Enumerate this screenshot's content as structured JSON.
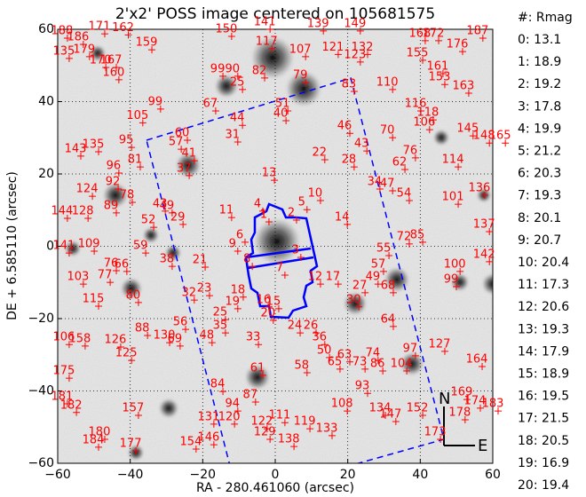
{
  "chart_data": {
    "type": "scatter",
    "title": "2'x2' POSS image centered on 105681575",
    "xlabel": "RA - 280.461060 (arcsec)",
    "ylabel": "DE + 6.585110 (arcsec)",
    "xlim": [
      -60,
      60
    ],
    "ylim": [
      -60,
      60
    ],
    "xticks": [
      {
        "value": -60,
        "label": "−60"
      },
      {
        "value": -40,
        "label": "−40"
      },
      {
        "value": -20,
        "label": "−20"
      },
      0,
      20,
      40,
      60
    ],
    "yticks": [
      {
        "value": -60,
        "label": "−60"
      },
      {
        "value": -40,
        "label": "−40"
      },
      {
        "value": -20,
        "label": "−20"
      },
      0,
      20,
      40,
      60
    ],
    "grid": true,
    "series": [
      {
        "color": "#ff0000",
        "labels": [
          "188",
          "171",
          "162",
          "186",
          "159",
          "150",
          "141",
          "139",
          "149",
          "117",
          "107",
          "121",
          "132",
          "123",
          "168",
          "172",
          "187",
          "176",
          "155",
          "161",
          "153",
          "163",
          "135",
          "179",
          "170",
          "167",
          "160",
          "99",
          "90",
          "25",
          "82",
          "79",
          "83",
          "110",
          "99",
          "67",
          "51",
          "40",
          "105",
          "116",
          "118",
          "106",
          "44",
          "46",
          "70",
          "145",
          "148",
          "165",
          "60",
          "57",
          "31",
          "95",
          "43",
          "143",
          "135",
          "22",
          "28",
          "76",
          "62",
          "114",
          "96",
          "81",
          "41",
          "37",
          "13",
          "124",
          "92",
          "34",
          "47",
          "54",
          "101",
          "136",
          "10",
          "5",
          "4",
          "2",
          "1",
          "11",
          "14",
          "128",
          "144",
          "78",
          "89",
          "43",
          "49",
          "29",
          "52",
          "6",
          "9",
          "137",
          "72",
          "85",
          "55",
          "141",
          "109",
          "59",
          "142",
          "38",
          "21",
          "3",
          "8",
          "57",
          "49",
          "68",
          "100",
          "99",
          "76",
          "66",
          "77",
          "103",
          "7",
          "12",
          "17",
          "27",
          "23",
          "32",
          "18",
          "80",
          "115",
          "19",
          "16",
          "15",
          "25",
          "20",
          "30",
          "24",
          "26",
          "64",
          "56",
          "35",
          "48",
          "88",
          "106",
          "158",
          "126",
          "125",
          "130",
          "69",
          "33",
          "36",
          "50",
          "63",
          "73",
          "86",
          "65",
          "58",
          "74",
          "104",
          "97",
          "127",
          "164",
          "175",
          "61",
          "84",
          "93",
          "87",
          "94",
          "181",
          "182",
          "157",
          "108",
          "134",
          "147",
          "152",
          "169",
          "174",
          "183",
          "178",
          "131",
          "120",
          "122",
          "111",
          "119",
          "133",
          "129",
          "138",
          "173",
          "180",
          "184",
          "177",
          "146",
          "154"
        ],
        "x": [
          -58.8,
          -48.5,
          -42,
          -54.4,
          -35.5,
          -13.5,
          -2.9,
          11.8,
          22,
          -2.4,
          6.9,
          15.9,
          24,
          22,
          39.9,
          43.6,
          55.8,
          50.2,
          39.2,
          44.8,
          45.3,
          51.9,
          -58.3,
          -52.7,
          -48.2,
          -45.3,
          -44.6,
          -15.9,
          -11.8,
          -10.5,
          -4.4,
          6.9,
          20.3,
          30.9,
          -33.1,
          -17.9,
          2,
          1.5,
          -38,
          38.7,
          42.1,
          41.1,
          -10.5,
          19.1,
          30.9,
          53.1,
          57.6,
          62,
          -25.7,
          -27.4,
          -11.8,
          -41.1,
          23.8,
          -55.1,
          -50.2,
          12.2,
          20.3,
          37.2,
          34.3,
          49,
          -44.6,
          -38.7,
          -23.8,
          -25.2,
          -1.7,
          -51.9,
          -44.8,
          27.4,
          30.9,
          35.5,
          49,
          56.3,
          11,
          7.3,
          -4.9,
          4.4,
          -3.2,
          -13.5,
          18.4,
          -53.1,
          -58.8,
          -40.9,
          -45.3,
          -31.8,
          -29.9,
          -26.9,
          -35,
          -9.8,
          -11.8,
          57.6,
          35.5,
          39.2,
          29.9,
          -58.3,
          -51.4,
          -37.2,
          57.6,
          -29.9,
          -20.8,
          5.6,
          -7.8,
          28.4,
          26.9,
          31.1,
          49.5,
          48.5,
          -45.3,
          -42.4,
          -47,
          -54.4,
          1.2,
          11,
          15.9,
          23.3,
          -19.6,
          -23.8,
          -10.3,
          -39.2,
          -50.2,
          -11.8,
          -3.2,
          -0.5,
          -15.2,
          -2,
          21.6,
          5.4,
          9.8,
          31.1,
          -26.2,
          -15.2,
          -18.9,
          -36.7,
          -58.3,
          -53.9,
          -44.1,
          -41.1,
          -30.6,
          -27.7,
          -6.1,
          12.2,
          13.5,
          19.1,
          23.3,
          28.2,
          16.4,
          7.3,
          26.9,
          34.8,
          37.2,
          45.3,
          55.6,
          -58.3,
          -4.9,
          -15.9,
          24,
          -6.9,
          -11.8,
          -58.8,
          -56.3,
          -39.2,
          18.4,
          28.9,
          31.8,
          39.2,
          51.4,
          55.1,
          60,
          50.9,
          -18.4,
          -12.7,
          -3.7,
          1.2,
          8.1,
          14.2,
          -2.9,
          3.7,
          44.1,
          -48.5,
          -50.2,
          -39.9,
          -18.4,
          -23.3
        ],
        "y": [
          59.5,
          60.7,
          60.4,
          57.8,
          56.3,
          60,
          62,
          61.5,
          61.5,
          56.6,
          54.4,
          55,
          55,
          52.9,
          58.8,
          58.8,
          59.5,
          55.8,
          53.4,
          49.7,
          46.7,
          44.3,
          53.9,
          54.4,
          51.4,
          51.4,
          48,
          49,
          49,
          45.3,
          48.5,
          47.2,
          44.8,
          45.3,
          39.9,
          39.4,
          39.4,
          36.7,
          36.1,
          39.4,
          36.9,
          34.2,
          35.4,
          33.2,
          32,
          32.5,
          30.5,
          30.5,
          31.3,
          28.8,
          30.8,
          29.3,
          28.3,
          26.9,
          28.1,
          25.9,
          23.9,
          26.4,
          23.2,
          23.9,
          22.2,
          23.9,
          25.6,
          21.5,
          20.2,
          15.8,
          17.8,
          17.8,
          17.3,
          14.6,
          13.6,
          16.1,
          14.6,
          12.1,
          11.7,
          9.2,
          8.7,
          9.9,
          8,
          9.7,
          9.7,
          14.1,
          11.2,
          11.7,
          11.2,
          8,
          7.2,
          3.1,
          0.6,
          6,
          2.6,
          3.1,
          -0.6,
          0.1,
          0.6,
          0.1,
          -2.3,
          -3.6,
          -3.8,
          -1.1,
          -3.6,
          -5,
          -8.5,
          -10.9,
          -5,
          -9.2,
          -4.8,
          -5,
          -8,
          -8.5,
          -6,
          -8.5,
          -8.5,
          -10.9,
          -11.7,
          -12.9,
          -12.1,
          -13.6,
          -14.6,
          -15.3,
          -14.8,
          -15.3,
          -18.3,
          -18.5,
          -14.8,
          -22,
          -22,
          -20.2,
          -21,
          -22,
          -24.7,
          -22.7,
          -25.2,
          -25.6,
          -25.9,
          -29.6,
          -24.7,
          -25.6,
          -25.2,
          -25.2,
          -28.8,
          -30,
          -32,
          -32.5,
          -32,
          -33,
          -29.6,
          -32.5,
          -28.3,
          -27.1,
          -31.3,
          -34.5,
          -33.7,
          -38.2,
          -38.7,
          -41.1,
          -43.6,
          -41.6,
          -44,
          -44.8,
          -43.6,
          -44.8,
          -46.5,
          -44.8,
          -40.4,
          -42.8,
          -43.6,
          -46,
          -47.2,
          -47.2,
          -48.5,
          -46.8,
          -48.5,
          -50.4,
          -51.4,
          -53.4,
          -51.4,
          -51.4,
          -53.6,
          -54.6,
          -52.9,
          -54.1
        ]
      }
    ],
    "legend": {
      "header": "#: Rmag",
      "entries": [
        "0: 13.1",
        "1: 18.9",
        "2: 19.2",
        "3: 17.8",
        "4: 19.9",
        "5: 21.2",
        "6: 20.3",
        "7: 19.3",
        "8: 20.1",
        "9: 20.7",
        "10: 20.4",
        "11: 17.3",
        "12: 20.6",
        "13: 19.3",
        "14: 17.9",
        "15: 18.9",
        "16: 19.5",
        "17: 21.5",
        "18: 20.5",
        "19: 16.9",
        "20: 19.4"
      ]
    },
    "compass": {
      "north": "N",
      "east": "E"
    }
  }
}
